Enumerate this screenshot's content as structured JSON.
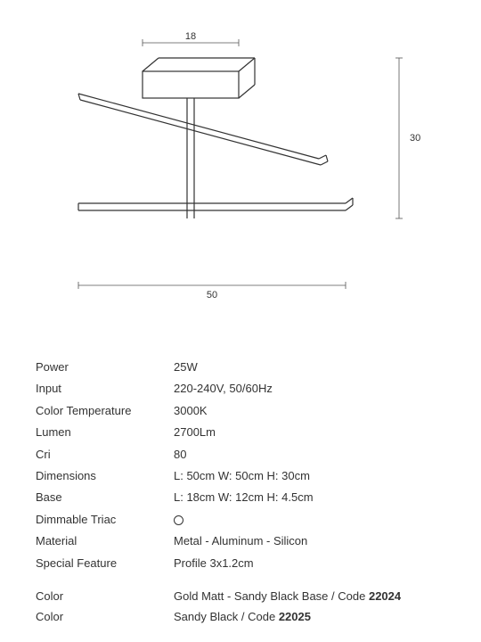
{
  "diagram": {
    "dim_top": "18",
    "dim_right": "30",
    "dim_bottom": "50",
    "stroke_color": "#333333",
    "stroke_width": 1.2,
    "font_size": 11,
    "text_color": "#333333"
  },
  "specs": [
    {
      "label": "Power",
      "value": "25W"
    },
    {
      "label": "Input",
      "value": "220-240V, 50/60Hz"
    },
    {
      "label": "Color Temperature",
      "value": "3000K"
    },
    {
      "label": "Lumen",
      "value": "2700Lm"
    },
    {
      "label": "Cri",
      "value": "80"
    },
    {
      "label": "Dimensions",
      "value": "L: 50cm   W: 50cm   H: 30cm"
    },
    {
      "label": "Base",
      "value": "L: 18cm   W: 12cm   H: 4.5cm"
    },
    {
      "label": "Dimmable Triac",
      "value": "__ICON__"
    },
    {
      "label": "Material",
      "value": "Metal - Aluminum - Silicon"
    },
    {
      "label": "Special Feature",
      "value": "Profile  3x1.2cm"
    }
  ],
  "variants": [
    {
      "label": "Color",
      "color": "Gold Matt - Sandy Black Base",
      "code_label": "Code",
      "code": "22024"
    },
    {
      "label": "Color",
      "color": "Sandy Black",
      "code_label": "Code",
      "code": "22025"
    }
  ]
}
